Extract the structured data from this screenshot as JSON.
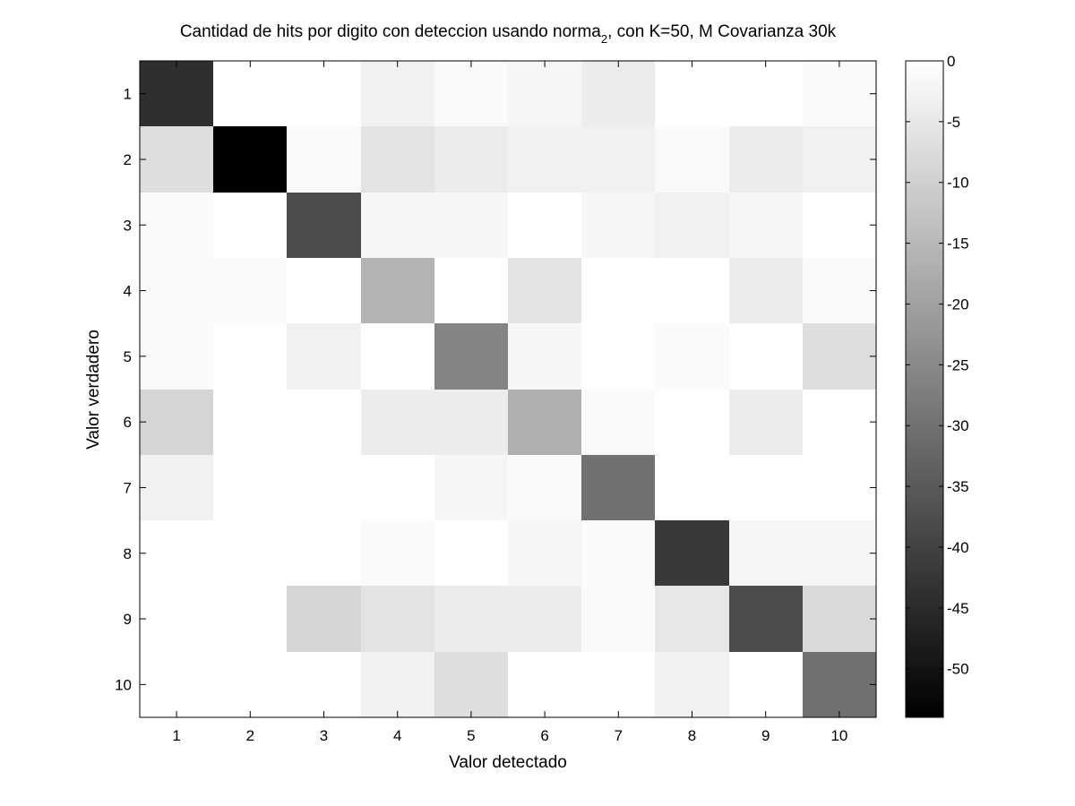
{
  "chart_data": {
    "type": "heatmap",
    "title": {
      "prefix": "Cantidad de hits por digito con deteccion usando norma",
      "subscript": "2",
      "suffix": ", con K=50, M Covarianza 30k"
    },
    "xlabel": "Valor detectado",
    "ylabel": "Valor verdadero",
    "x_categories": [
      "1",
      "2",
      "3",
      "4",
      "5",
      "6",
      "7",
      "8",
      "9",
      "10"
    ],
    "y_categories": [
      "1",
      "2",
      "3",
      "4",
      "5",
      "6",
      "7",
      "8",
      "9",
      "10"
    ],
    "colormap": "gray",
    "clim": [
      -54,
      0
    ],
    "colorbar": {
      "ticks": [
        0,
        -5,
        -10,
        -15,
        -20,
        -25,
        -30,
        -35,
        -40,
        -45,
        -50
      ],
      "labels": [
        "0",
        "-5",
        "-10",
        "-15",
        "-20",
        "-25",
        "-30",
        "-35",
        "-40",
        "-45",
        "-50"
      ]
    },
    "values": [
      [
        -44,
        0,
        0,
        -3,
        -1,
        -2,
        -4,
        0,
        0,
        -1
      ],
      [
        -7,
        -54,
        -1,
        -6,
        -4,
        -3,
        -3,
        -1,
        -4,
        -3
      ],
      [
        -1,
        0,
        -38,
        -2,
        -2,
        0,
        -2,
        -3,
        -2,
        0
      ],
      [
        -1,
        -1,
        0,
        -16,
        0,
        -6,
        0,
        0,
        -4,
        -1
      ],
      [
        -1,
        0,
        -3,
        0,
        -26,
        -2,
        0,
        -1,
        0,
        -7
      ],
      [
        -9,
        0,
        0,
        -4,
        -4,
        -17,
        -1,
        0,
        -4,
        0
      ],
      [
        -3,
        0,
        0,
        0,
        -2,
        -1,
        -30,
        0,
        0,
        0
      ],
      [
        0,
        0,
        0,
        -1,
        0,
        -2,
        -1,
        -42,
        -2,
        -2
      ],
      [
        0,
        0,
        -9,
        -6,
        -4,
        -4,
        -1,
        -5,
        -38,
        -8
      ],
      [
        0,
        0,
        0,
        -3,
        -7,
        0,
        0,
        -3,
        0,
        -30
      ]
    ]
  }
}
